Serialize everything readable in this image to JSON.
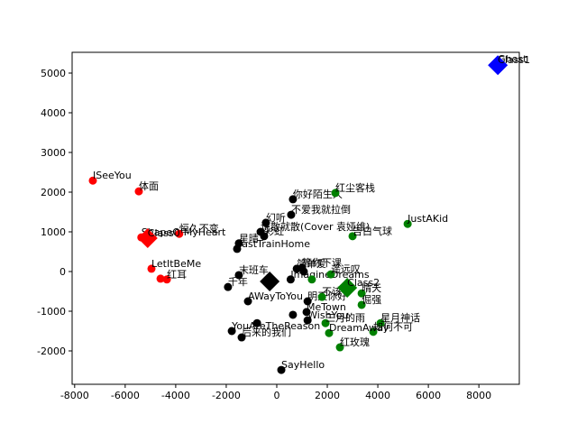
{
  "chart_data": {
    "type": "scatter",
    "xlim": [
      -8100,
      9600
    ],
    "ylim": [
      -2841,
      5523
    ],
    "xticks": [
      -8000,
      -6000,
      -4000,
      -2000,
      0,
      2000,
      4000,
      6000,
      8000
    ],
    "yticks": [
      -2000,
      -1000,
      0,
      1000,
      2000,
      3000,
      4000,
      5000
    ],
    "series": [
      {
        "color": "#ff0000",
        "marker": "circle",
        "x": [
          -7280,
          -5460,
          -5360,
          -3860,
          -4960,
          -4600,
          -4350
        ],
        "y": [
          2290,
          2020,
          860,
          950,
          70,
          -180,
          -200
        ],
        "labels": [
          "ISeeYou",
          "体面",
          "ShapeOfMyHeart",
          "恒久不变",
          "LetItBeMe",
          null,
          "红耳"
        ]
      },
      {
        "color": "#000000",
        "marker": "circle",
        "x": [
          640,
          570,
          -430,
          -640,
          -500,
          -1500,
          -1570,
          790,
          1000,
          1070,
          -1500,
          -1930,
          -1140,
          1220,
          1180,
          640,
          1220,
          -1780,
          -1390,
          -780,
          180,
          550
        ],
        "y": [
          1820,
          1430,
          1230,
          1000,
          890,
          710,
          570,
          70,
          90,
          0,
          -90,
          -390,
          -750,
          -750,
          -1020,
          -1090,
          -1230,
          -1500,
          -1660,
          -1300,
          -2480,
          -200
        ],
        "labels": [
          "你好陌生人",
          "不爱我就拉倒",
          "幻听",
          "说散就散(Cover 袁娅维)",
          "彩虹",
          "星晴",
          "FastTrainHome",
          "简单爱",
          "等你下课",
          null,
          "末班车",
          "千年",
          "AWayToYou",
          "明天你好",
          "MeTown",
          null,
          "WishYou",
          "YouAreTheReason",
          "后来的我们",
          null,
          "SayHello",
          "ImagineDreams"
        ]
      },
      {
        "color": "#008000",
        "marker": "circle",
        "x": [
          2320,
          5180,
          3000,
          2140,
          1390,
          3360,
          3360,
          1790,
          4110,
          3820,
          2070,
          1930,
          2500
        ],
        "y": [
          1980,
          1200,
          890,
          -70,
          -200,
          -550,
          -840,
          -640,
          -1300,
          -1520,
          -1550,
          -1300,
          -1910
        ],
        "labels": [
          "红尘客栈",
          "JustAKid",
          "告白气球",
          "遥远叹",
          null,
          "晴天",
          "倔强",
          "不该",
          "星月神话",
          "如何不可",
          "DreamAway",
          "三月的雨",
          "红玫瑰"
        ]
      },
      {
        "color": "#0000ff",
        "marker": "circle",
        "x": [
          8750
        ],
        "y": [
          5230
        ],
        "labels": [
          "Ghost"
        ]
      },
      {
        "color": "#ff0000",
        "marker": "diamond",
        "x": [
          -5110
        ],
        "y": [
          840
        ],
        "labels": [
          "Class0"
        ]
      },
      {
        "color": "#0000ff",
        "marker": "diamond",
        "x": [
          8750
        ],
        "y": [
          5200
        ],
        "labels": [
          "Class1"
        ]
      },
      {
        "color": "#008000",
        "marker": "diamond",
        "x": [
          2790
        ],
        "y": [
          -410
        ],
        "labels": [
          "Class2"
        ]
      },
      {
        "color": "#000000",
        "marker": "diamond",
        "x": [
          -280
        ],
        "y": [
          -250
        ],
        "labels": [
          null
        ]
      }
    ]
  }
}
